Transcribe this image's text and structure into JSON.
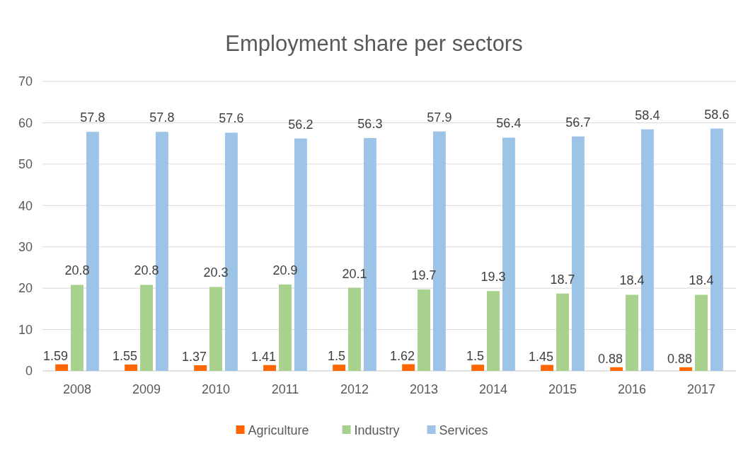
{
  "chart_data": {
    "type": "bar",
    "title": "Employment share per sectors",
    "categories": [
      "2008",
      "2009",
      "2010",
      "2011",
      "2012",
      "2013",
      "2014",
      "2015",
      "2016",
      "2017"
    ],
    "series": [
      {
        "name": "Agriculture",
        "color": "#ff6600",
        "values": [
          1.59,
          1.55,
          1.37,
          1.41,
          1.5,
          1.62,
          1.5,
          1.45,
          0.88,
          0.88
        ]
      },
      {
        "name": "Industry",
        "color": "#a9d18e",
        "values": [
          20.8,
          20.8,
          20.3,
          20.9,
          20.1,
          19.7,
          19.3,
          18.7,
          18.4,
          18.4
        ]
      },
      {
        "name": "Services",
        "color": "#9dc3e6",
        "values": [
          57.8,
          57.8,
          57.6,
          56.2,
          56.3,
          57.9,
          56.4,
          56.7,
          58.4,
          58.6
        ]
      }
    ],
    "ylim": [
      0,
      70
    ],
    "yticks": [
      0,
      10,
      20,
      30,
      40,
      50,
      60,
      70
    ],
    "grid": "y",
    "legend": "bottom",
    "data_labels": true
  }
}
